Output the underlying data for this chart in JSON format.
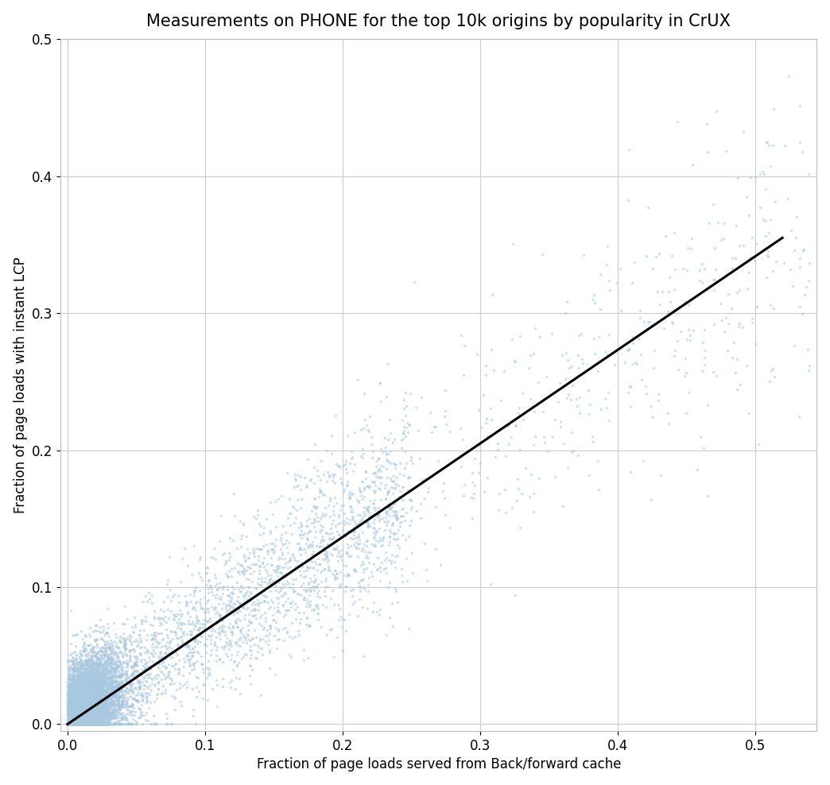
{
  "title": "Measurements on PHONE for the top 10k origins by popularity in CrUX",
  "xlabel": "Fraction of page loads served from Back/forward cache",
  "ylabel": "Fraction of page loads with instant LCP",
  "xlim": [
    -0.005,
    0.545
  ],
  "ylim": [
    -0.005,
    0.5
  ],
  "xticks": [
    0.0,
    0.1,
    0.2,
    0.3,
    0.4,
    0.5
  ],
  "yticks": [
    0.0,
    0.1,
    0.2,
    0.3,
    0.4,
    0.5
  ],
  "n_points": 10000,
  "seed": 42,
  "point_color": "#A8C8E0",
  "point_alpha": 0.55,
  "point_size": 6,
  "line_color": "black",
  "line_width": 2.2,
  "line_x0": 0.0,
  "line_y0": 0.0,
  "line_x1": 0.52,
  "line_y1": 0.355,
  "background_color": "white",
  "grid_color": "#cccccc",
  "title_fontsize": 15,
  "label_fontsize": 12,
  "tick_fontsize": 12
}
